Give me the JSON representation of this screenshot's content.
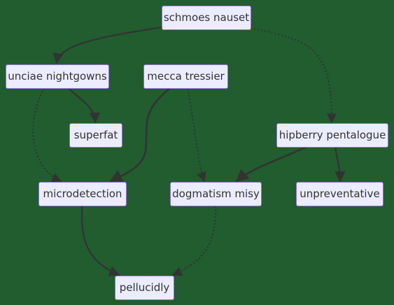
{
  "nodes": {
    "schmoes": "schmoes nauset",
    "unciae": "unciae nightgowns",
    "mecca": "mecca tressier",
    "superfat": "superfat",
    "hipberry": "hipberry pentalogue",
    "microdetection": "microdetection",
    "dogmatism": "dogmatism misy",
    "unpreventative": "unpreventative",
    "pellucidly": "pellucidly"
  },
  "edges": [
    {
      "from": "schmoes",
      "to": "unciae",
      "style": "solid"
    },
    {
      "from": "schmoes",
      "to": "hipberry",
      "style": "dotted"
    },
    {
      "from": "unciae",
      "to": "superfat",
      "style": "solid"
    },
    {
      "from": "unciae",
      "to": "microdetection",
      "style": "dotted"
    },
    {
      "from": "mecca",
      "to": "microdetection",
      "style": "solid"
    },
    {
      "from": "mecca",
      "to": "dogmatism",
      "style": "dotted"
    },
    {
      "from": "hipberry",
      "to": "dogmatism",
      "style": "solid"
    },
    {
      "from": "hipberry",
      "to": "unpreventative",
      "style": "solid"
    },
    {
      "from": "microdetection",
      "to": "pellucidly",
      "style": "solid"
    },
    {
      "from": "dogmatism",
      "to": "pellucidly",
      "style": "dotted"
    }
  ],
  "colors": {
    "background": "#215d2f",
    "node_fill": "#ececff",
    "node_border": "#9370db",
    "edge": "#333333"
  }
}
